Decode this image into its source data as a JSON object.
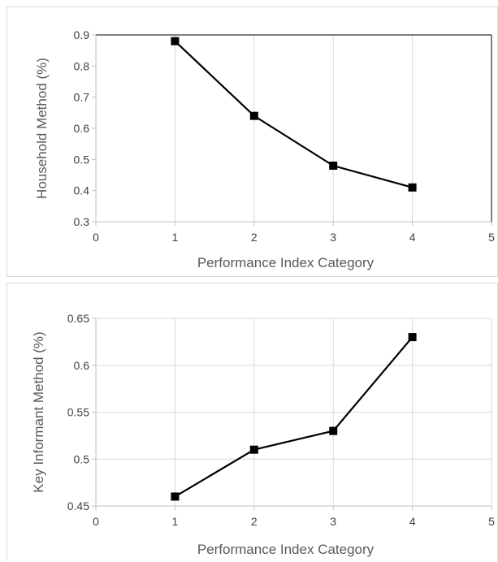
{
  "chart_data": [
    {
      "type": "line",
      "title": "",
      "xlabel": "Performance Index Category",
      "ylabel": "Household Method (%)",
      "xlim": [
        0,
        5
      ],
      "ylim": [
        0.3,
        0.9
      ],
      "xticks": [
        0,
        1,
        2,
        3,
        4,
        5
      ],
      "yticks": [
        0.3,
        0.4,
        0.5,
        0.6,
        0.7,
        0.8,
        0.9
      ],
      "ytick_labels": [
        "0.3",
        "0.4",
        "0.5",
        "0.6",
        "0.7",
        "0.8",
        "0.9"
      ],
      "grid": "vertical",
      "legend": "none",
      "marker": "square",
      "series": [
        {
          "x": [
            1,
            2,
            3,
            4
          ],
          "y": [
            0.88,
            0.64,
            0.48,
            0.41
          ],
          "color": "#000000"
        }
      ]
    },
    {
      "type": "line",
      "title": "",
      "xlabel": "Performance Index Category",
      "ylabel": "Key Informant  Method (%)",
      "xlim": [
        0,
        5
      ],
      "ylim": [
        0.45,
        0.65
      ],
      "xticks": [
        0,
        1,
        2,
        3,
        4,
        5
      ],
      "yticks": [
        0.45,
        0.5,
        0.55,
        0.6,
        0.65
      ],
      "ytick_labels": [
        "0.45",
        "0.5",
        "0.55",
        "0.6",
        "0.65"
      ],
      "grid": "both",
      "legend": "none",
      "marker": "square",
      "series": [
        {
          "x": [
            1,
            2,
            3,
            4
          ],
          "y": [
            0.46,
            0.51,
            0.53,
            0.63
          ],
          "color": "#000000"
        }
      ]
    }
  ]
}
